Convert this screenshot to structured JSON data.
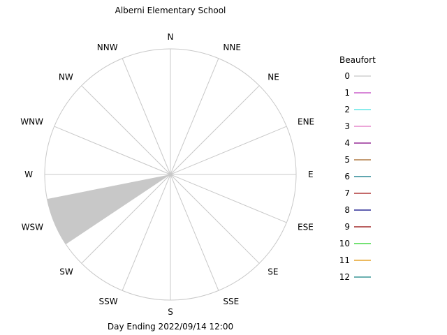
{
  "chart_data": {
    "type": "wind-rose",
    "title": "Alberni Elementary School",
    "subtitle": "Day Ending 2022/09/14 12:00",
    "directions": [
      "N",
      "NNE",
      "NE",
      "ENE",
      "E",
      "ESE",
      "SE",
      "SSE",
      "S",
      "SSW",
      "SW",
      "WSW",
      "W",
      "WNW",
      "NW",
      "NNW"
    ],
    "grid": true,
    "legend": {
      "title": "Beaufort",
      "placement": "right",
      "items": [
        {
          "label": "0",
          "color": "#c8c8c8"
        },
        {
          "label": "1",
          "color": "#c040c0"
        },
        {
          "label": "2",
          "color": "#40e0e0"
        },
        {
          "label": "3",
          "color": "#e070c0"
        },
        {
          "label": "4",
          "color": "#800080"
        },
        {
          "label": "5",
          "color": "#a06020"
        },
        {
          "label": "6",
          "color": "#007080"
        },
        {
          "label": "7",
          "color": "#a01010"
        },
        {
          "label": "8",
          "color": "#000080"
        },
        {
          "label": "9",
          "color": "#900000"
        },
        {
          "label": "10",
          "color": "#20d020"
        },
        {
          "label": "11",
          "color": "#e09000"
        },
        {
          "label": "12",
          "color": "#108080"
        }
      ]
    },
    "series": [
      {
        "beaufort": "0",
        "direction": "WSW",
        "frequency": 1.0
      }
    ]
  }
}
